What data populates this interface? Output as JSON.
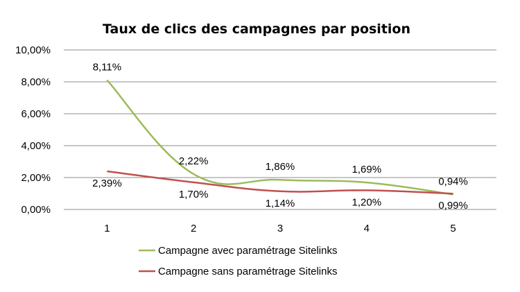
{
  "chart_data": {
    "type": "line",
    "title": "Taux de clics des campagnes par position",
    "xlabel": "",
    "ylabel": "",
    "categories": [
      "1",
      "2",
      "3",
      "4",
      "5"
    ],
    "ylim": [
      0,
      10
    ],
    "y_ticks": [
      "0,00%",
      "2,00%",
      "4,00%",
      "6,00%",
      "8,00%",
      "10,00%"
    ],
    "grid": true,
    "legend": "bottom",
    "series": [
      {
        "name": "Campagne avec paramétrage Sitelinks",
        "color": "#9bbb59",
        "values": [
          8.11,
          2.22,
          1.86,
          1.69,
          0.94
        ],
        "labels": [
          "8,11%",
          "2,22%",
          "1,86%",
          "1,69%",
          "0,94%"
        ]
      },
      {
        "name": "Campagne sans paramétrage Sitelinks",
        "color": "#c0504d",
        "values": [
          2.39,
          1.7,
          1.14,
          1.2,
          0.99
        ],
        "labels": [
          "2,39%",
          "1,70%",
          "1,14%",
          "1,20%",
          "0,99%"
        ]
      }
    ]
  }
}
